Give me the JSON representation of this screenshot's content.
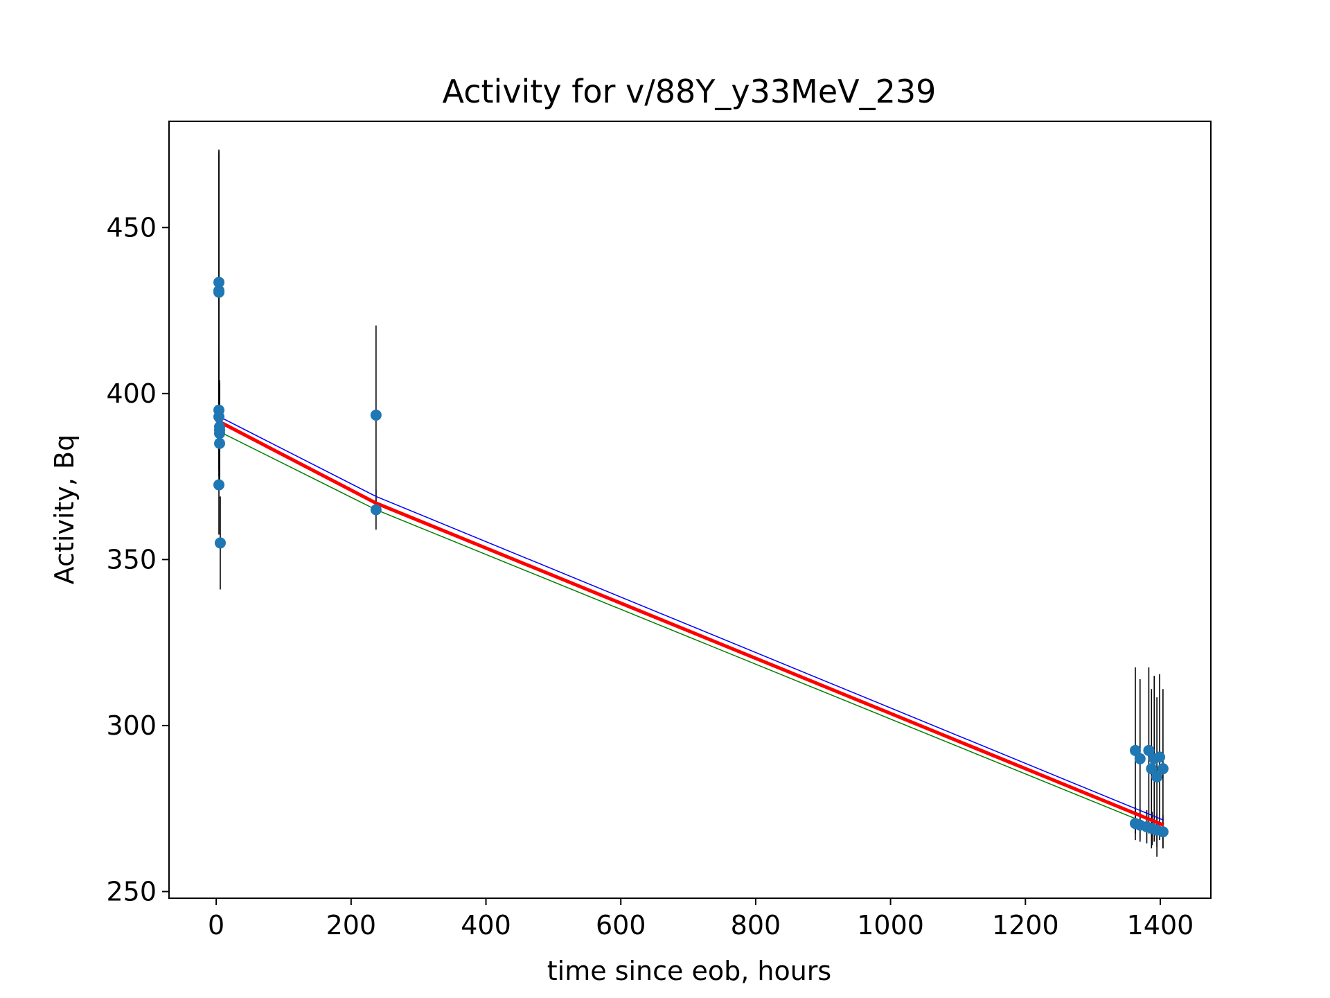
{
  "chart_data": {
    "type": "scatter",
    "title": "Activity for v/88Y_y33MeV_239",
    "xlabel": "time since eob, hours",
    "ylabel": "Activity, Bq",
    "xlim": [
      -70,
      1475
    ],
    "ylim": [
      248,
      482
    ],
    "xticks": [
      0,
      200,
      400,
      600,
      800,
      1000,
      1200,
      1400
    ],
    "yticks": [
      250,
      300,
      350,
      400,
      450
    ],
    "grid": false,
    "legend": "none",
    "colors": {
      "points": "#1f77b4",
      "errorbars": "#000000",
      "fit": "#ff0000",
      "upper": "#0000ff",
      "lower": "#008000"
    },
    "measurements": [
      {
        "x": 4,
        "y": 433.5,
        "err": 40
      },
      {
        "x": 4,
        "y": 431.0,
        "err": 42
      },
      {
        "x": 4,
        "y": 430.5,
        "err": 42
      },
      {
        "x": 4,
        "y": 395.0,
        "err": 18
      },
      {
        "x": 4,
        "y": 393.0,
        "err": 18
      },
      {
        "x": 5,
        "y": 390.0,
        "err": 14
      },
      {
        "x": 5,
        "y": 389.0,
        "err": 14
      },
      {
        "x": 5,
        "y": 388.0,
        "err": 14
      },
      {
        "x": 5,
        "y": 385.0,
        "err": 10
      },
      {
        "x": 4,
        "y": 372.5,
        "err": 15
      },
      {
        "x": 6,
        "y": 355.0,
        "err": 14
      },
      {
        "x": 237,
        "y": 393.5,
        "err": 27
      },
      {
        "x": 237,
        "y": 365.0,
        "err": 6
      },
      {
        "x": 1363,
        "y": 292.5,
        "err": 25
      },
      {
        "x": 1370,
        "y": 290.0,
        "err": 24
      },
      {
        "x": 1383,
        "y": 292.5,
        "err": 25
      },
      {
        "x": 1387,
        "y": 287.0,
        "err": 24
      },
      {
        "x": 1391,
        "y": 290.0,
        "err": 25
      },
      {
        "x": 1395,
        "y": 284.5,
        "err": 24
      },
      {
        "x": 1399,
        "y": 290.5,
        "err": 25
      },
      {
        "x": 1404,
        "y": 287.0,
        "err": 24
      },
      {
        "x": 1363,
        "y": 270.5,
        "err": 5
      },
      {
        "x": 1370,
        "y": 270.0,
        "err": 5
      },
      {
        "x": 1380,
        "y": 269.5,
        "err": 5
      },
      {
        "x": 1388,
        "y": 269.0,
        "err": 5
      },
      {
        "x": 1395,
        "y": 268.5,
        "err": 5
      },
      {
        "x": 1404,
        "y": 268.0,
        "err": 5
      }
    ],
    "fit": {
      "x": [
        0,
        237,
        1405
      ],
      "y": [
        392,
        367,
        270
      ],
      "upper": [
        393.5,
        369,
        271.5
      ],
      "lower": [
        389,
        365,
        268.5
      ]
    }
  }
}
